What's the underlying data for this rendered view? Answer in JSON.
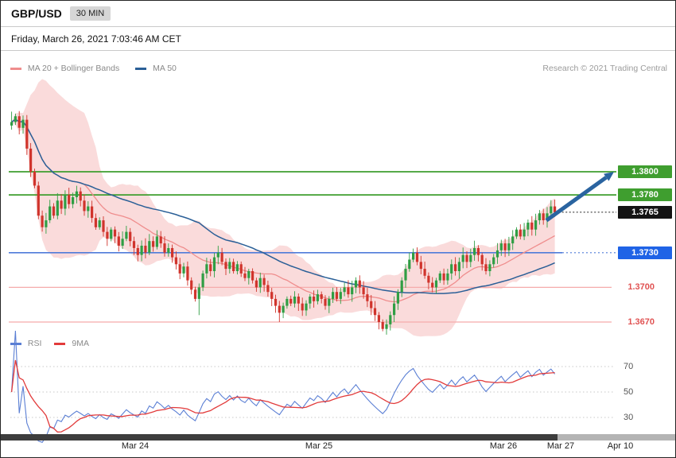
{
  "header": {
    "symbol": "GBP/USD",
    "timeframe": "30 MIN"
  },
  "timestamp": "Friday, March 26, 2021 7:03:46 AM CET",
  "legend": {
    "main": [
      {
        "label": "MA 20 + Bollinger Bands",
        "color": "#ef8d8d"
      },
      {
        "label": "MA 50",
        "color": "#2a5f97"
      }
    ],
    "credit": "Research © 2021 Trading Central",
    "rsi": [
      {
        "label": "RSI",
        "color": "#5b7fd4"
      },
      {
        "label": "9MA",
        "color": "#e23b3b"
      }
    ]
  },
  "chart_data": {
    "type": "candlestick",
    "title": "GBP/USD",
    "interval": "30 MIN",
    "first_open": 1.384,
    "closes": [
      1.3843,
      1.3848,
      1.3838,
      1.3845,
      1.382,
      1.38,
      1.3788,
      1.3762,
      1.3752,
      1.3758,
      1.377,
      1.3762,
      1.3775,
      1.3768,
      1.378,
      1.3772,
      1.3778,
      1.3783,
      1.3775,
      1.3766,
      1.377,
      1.376,
      1.3752,
      1.3758,
      1.3748,
      1.3742,
      1.375,
      1.3744,
      1.3736,
      1.3742,
      1.3748,
      1.374,
      1.3734,
      1.3728,
      1.3736,
      1.373,
      1.374,
      1.3735,
      1.3744,
      1.3738,
      1.373,
      1.3734,
      1.3726,
      1.372,
      1.3712,
      1.3718,
      1.3706,
      1.3698,
      1.369,
      1.37,
      1.3712,
      1.372,
      1.3714,
      1.3726,
      1.373,
      1.3722,
      1.3716,
      1.3722,
      1.3714,
      1.372,
      1.3712,
      1.3708,
      1.3714,
      1.3706,
      1.37,
      1.3708,
      1.3702,
      1.3696,
      1.369,
      1.3684,
      1.3678,
      1.3684,
      1.369,
      1.3686,
      1.3692,
      1.3686,
      1.368,
      1.3686,
      1.3692,
      1.3688,
      1.3694,
      1.369,
      1.3684,
      1.369,
      1.3696,
      1.369,
      1.3696,
      1.37,
      1.3694,
      1.37,
      1.3706,
      1.37,
      1.3694,
      1.3688,
      1.3682,
      1.3676,
      1.367,
      1.3664,
      1.3668,
      1.3676,
      1.3686,
      1.3696,
      1.3706,
      1.3716,
      1.3724,
      1.373,
      1.3722,
      1.3716,
      1.371,
      1.3704,
      1.37,
      1.3706,
      1.3712,
      1.3706,
      1.3712,
      1.372,
      1.3714,
      1.3722,
      1.3728,
      1.3722,
      1.3728,
      1.3734,
      1.3728,
      1.372,
      1.3714,
      1.372,
      1.3726,
      1.3732,
      1.3738,
      1.3732,
      1.3738,
      1.3744,
      1.375,
      1.3744,
      1.375,
      1.3756,
      1.375,
      1.3758,
      1.3764,
      1.3758,
      1.3764,
      1.377,
      1.3765
    ],
    "wick_overrides": {
      "0": {
        "high": 1.3852
      },
      "49": {
        "low": 1.3676
      },
      "70": {
        "low": 1.367
      },
      "97": {
        "low": 1.3662
      }
    },
    "levels": [
      {
        "label": "1.3800",
        "price": 1.38,
        "kind": "resistance",
        "line": "solid-green",
        "badge_color": "#3f9e2f"
      },
      {
        "label": "1.3780",
        "price": 1.378,
        "kind": "resistance",
        "line": "solid-green",
        "badge_color": "#3f9e2f"
      },
      {
        "label": "1.3765",
        "price": 1.3765,
        "kind": "last-price",
        "line": "dotted-black",
        "badge_color": "#141414"
      },
      {
        "label": "1.3730",
        "price": 1.373,
        "kind": "support",
        "line": "solid-blue",
        "badge_color": "#1f63e6"
      },
      {
        "label": "1.3700",
        "price": 1.37,
        "kind": "support",
        "line": "thin-pink",
        "text_color": "#e05252"
      },
      {
        "label": "1.3670",
        "price": 1.367,
        "kind": "support",
        "line": "thin-pink",
        "text_color": "#e05252"
      }
    ],
    "indicators": {
      "bollinger_period": 20,
      "bollinger_stddev": 2,
      "ma50_period": 50,
      "rsi_period": 14,
      "rsi_ma": 9
    },
    "candle_up_color": "#2f9e44",
    "candle_down_color": "#d0342c",
    "bollinger_fill": "rgba(246,183,183,0.5)",
    "level_line_colors": {
      "green": "#3f9e2f",
      "blue": "#4f7bd9",
      "pink": "#f5abab",
      "black": "#222222"
    },
    "rsi_ticks": [
      70,
      50,
      30
    ],
    "x_axis_labels": [
      "Mar 24",
      "Mar 25",
      "Mar 26",
      "Mar 27",
      "Apr 10"
    ],
    "arrow": {
      "from_price": 1.3762,
      "to_price": 1.3802,
      "direction": "up-right",
      "color": "#2a64a0"
    },
    "ylim": [
      1.3655,
      1.387
    ],
    "last_price": 1.3765
  }
}
